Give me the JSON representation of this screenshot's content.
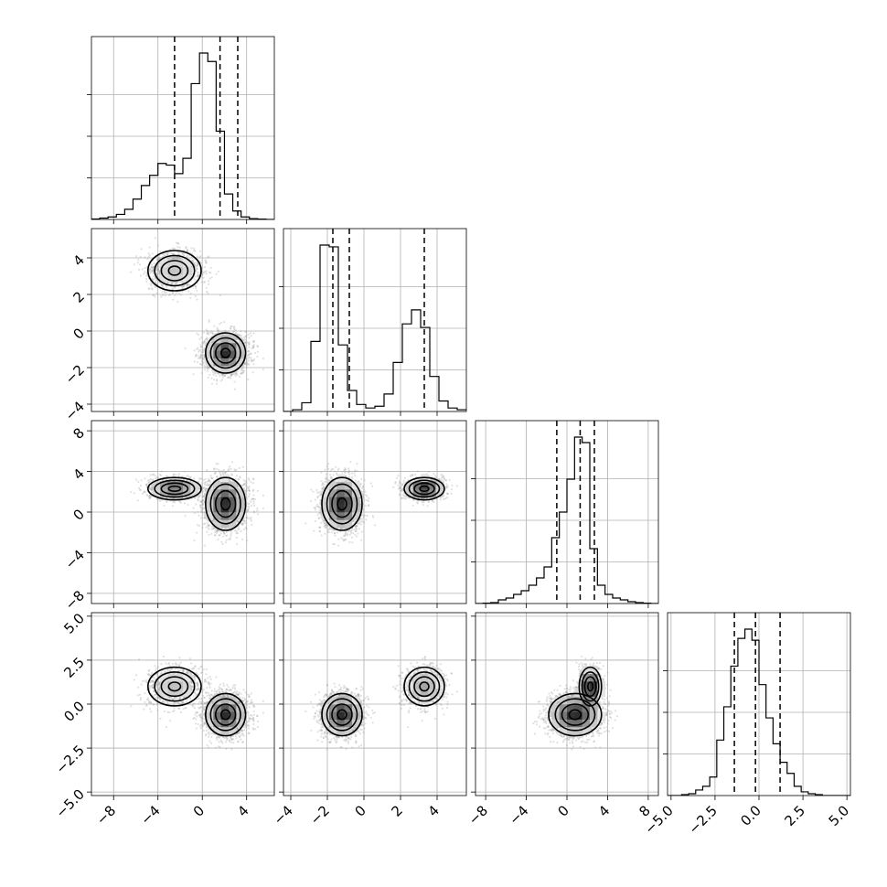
{
  "chart_data": {
    "type": "corner",
    "grid": true,
    "parameters": [
      {
        "range": [
          -10,
          6.5
        ],
        "ticks": [
          -8,
          -4,
          0,
          4
        ],
        "tick_labels": [
          "−8",
          "−4",
          "0",
          "4"
        ]
      },
      {
        "range": [
          -4.4,
          5.6
        ],
        "ticks": [
          -4,
          -2,
          0,
          2,
          4
        ],
        "tick_labels": [
          "−4",
          "−2",
          "0",
          "2",
          "4"
        ]
      },
      {
        "range": [
          -9,
          9
        ],
        "ticks": [
          -8,
          -4,
          0,
          4,
          8
        ],
        "tick_labels": [
          "−8",
          "−4",
          "0",
          "4",
          "8"
        ]
      },
      {
        "range": [
          -5.2,
          5.2
        ],
        "ticks": [
          -5,
          -2.5,
          0,
          2.5,
          5
        ],
        "tick_labels": [
          "−5.0",
          "−2.5",
          "0.0",
          "2.5",
          "5.0"
        ]
      }
    ],
    "quantiles": [
      [
        -2.5,
        1.6,
        3.2
      ],
      [
        -1.7,
        -0.8,
        3.3
      ],
      [
        -1.0,
        1.3,
        2.7
      ],
      [
        -1.4,
        -0.2,
        1.2
      ]
    ],
    "histograms": [
      {
        "bin_start": -10,
        "bin_width": 0.75,
        "counts": [
          0.003,
          0.008,
          0.015,
          0.03,
          0.06,
          0.12,
          0.2,
          0.26,
          0.33,
          0.32,
          0.27,
          0.36,
          0.8,
          0.98,
          0.93,
          0.52,
          0.15,
          0.05,
          0.015,
          0.005,
          0.002,
          0.0
        ]
      },
      {
        "bin_start": -4.4,
        "bin_width": 0.5,
        "counts": [
          0.0,
          0.01,
          0.05,
          0.4,
          0.95,
          0.94,
          0.38,
          0.12,
          0.04,
          0.02,
          0.03,
          0.1,
          0.28,
          0.5,
          0.58,
          0.48,
          0.2,
          0.06,
          0.02,
          0.01
        ]
      },
      {
        "bin_start": -9,
        "bin_width": 0.75,
        "counts": [
          0.0,
          0.002,
          0.005,
          0.02,
          0.03,
          0.05,
          0.07,
          0.1,
          0.14,
          0.2,
          0.36,
          0.5,
          0.68,
          0.91,
          0.88,
          0.3,
          0.1,
          0.05,
          0.03,
          0.02,
          0.01,
          0.005,
          0.002,
          0.0
        ]
      },
      {
        "bin_start": -5.2,
        "bin_width": 0.4,
        "counts": [
          0.0,
          0.0,
          0.005,
          0.01,
          0.03,
          0.05,
          0.1,
          0.3,
          0.48,
          0.7,
          0.85,
          0.9,
          0.84,
          0.6,
          0.42,
          0.28,
          0.18,
          0.12,
          0.05,
          0.02,
          0.01,
          0.005,
          0.0,
          0.0,
          0.0,
          0.0
        ]
      }
    ],
    "modes": [
      {
        "weight": 0.3,
        "mean": [
          -2.5,
          3.3,
          2.3,
          1.0
        ],
        "sd": [
          1.2,
          0.55,
          0.55,
          0.55
        ]
      },
      {
        "weight": 0.7,
        "mean": [
          2.1,
          -1.2,
          0.8,
          -0.6
        ],
        "sd": [
          0.9,
          0.55,
          1.3,
          0.6
        ]
      }
    ]
  }
}
